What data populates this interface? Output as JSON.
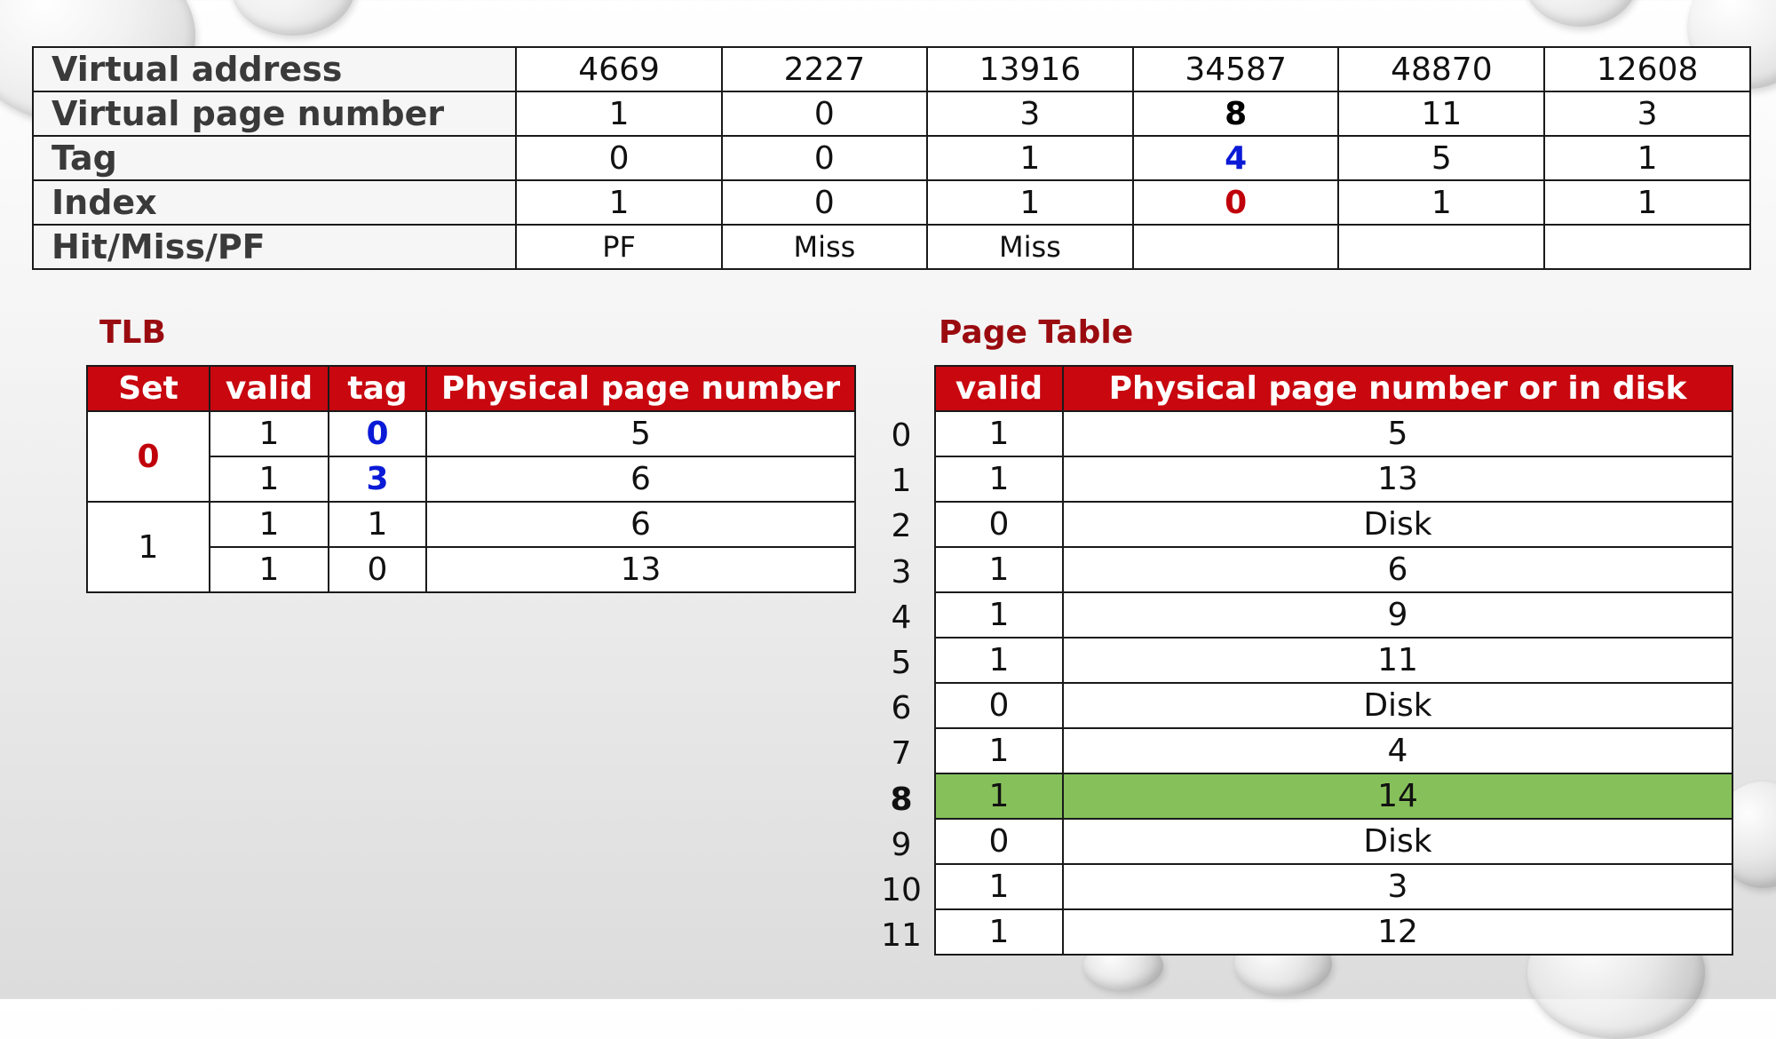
{
  "address_table": {
    "rows": [
      {
        "label": "Virtual address",
        "values": [
          "4669",
          "2227",
          "13916",
          "34587",
          "48870",
          "12608"
        ]
      },
      {
        "label": "Virtual page number",
        "values": [
          "1",
          "0",
          "3",
          "8",
          "11",
          "3"
        ]
      },
      {
        "label": "Tag",
        "values": [
          "0",
          "0",
          "1",
          "4",
          "5",
          "1"
        ]
      },
      {
        "label": "Index",
        "values": [
          "1",
          "0",
          "1",
          "0",
          "1",
          "1"
        ]
      },
      {
        "label": "Hit/Miss/PF",
        "values": [
          "PF",
          "Miss",
          "Miss",
          "",
          "",
          ""
        ]
      }
    ]
  },
  "tlb": {
    "title": "TLB",
    "headers": [
      "Set",
      "valid",
      "tag",
      "Physical page number"
    ],
    "sets": [
      {
        "set": "0",
        "entries": [
          {
            "valid": "1",
            "tag": "0",
            "ppn": "5"
          },
          {
            "valid": "1",
            "tag": "3",
            "ppn": "6"
          }
        ]
      },
      {
        "set": "1",
        "entries": [
          {
            "valid": "1",
            "tag": "1",
            "ppn": "6"
          },
          {
            "valid": "1",
            "tag": "0",
            "ppn": "13"
          }
        ]
      }
    ]
  },
  "page_table": {
    "title": "Page Table",
    "headers": [
      "valid",
      "Physical page number or in disk"
    ],
    "rows": [
      {
        "index": "0",
        "valid": "1",
        "ppn": "5"
      },
      {
        "index": "1",
        "valid": "1",
        "ppn": "13"
      },
      {
        "index": "2",
        "valid": "0",
        "ppn": "Disk"
      },
      {
        "index": "3",
        "valid": "1",
        "ppn": "6"
      },
      {
        "index": "4",
        "valid": "1",
        "ppn": "9"
      },
      {
        "index": "5",
        "valid": "1",
        "ppn": "11"
      },
      {
        "index": "6",
        "valid": "0",
        "ppn": "Disk"
      },
      {
        "index": "7",
        "valid": "1",
        "ppn": "4"
      },
      {
        "index": "8",
        "valid": "1",
        "ppn": "14"
      },
      {
        "index": "9",
        "valid": "0",
        "ppn": "Disk"
      },
      {
        "index": "10",
        "valid": "1",
        "ppn": "3"
      },
      {
        "index": "11",
        "valid": "1",
        "ppn": "12"
      }
    ],
    "highlighted_row": 8
  },
  "colors": {
    "header_red": "#c8070f",
    "title_red": "#9a0b10",
    "highlight_green": "#86c05a",
    "emphasis_blue": "#0a1ad6",
    "emphasis_red": "#c0000b"
  }
}
